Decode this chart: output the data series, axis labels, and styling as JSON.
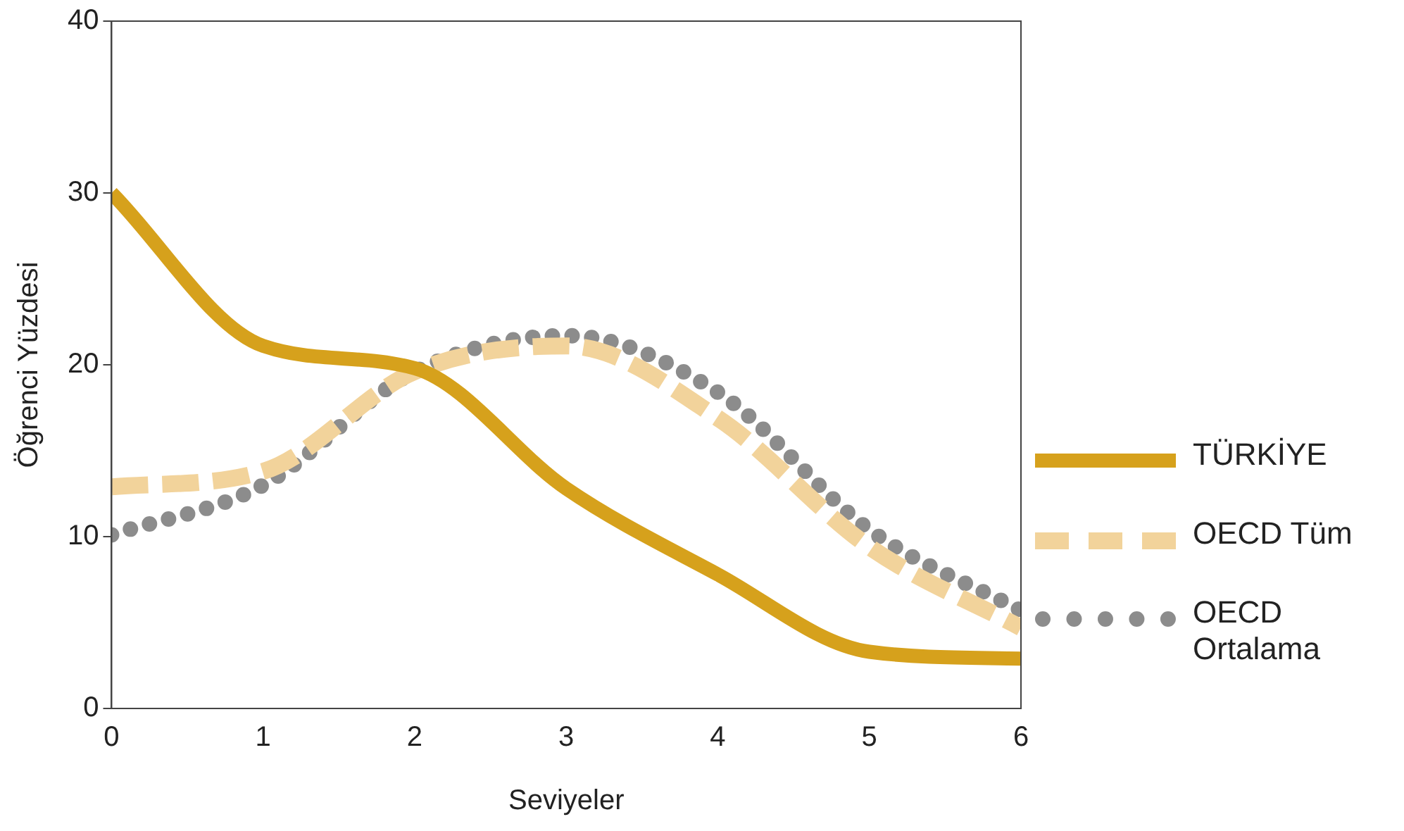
{
  "chart_data": {
    "type": "line",
    "xlabel": "Seviyeler",
    "ylabel": "Öğrenci Yüzdesi",
    "x": [
      0,
      1,
      2,
      3,
      4,
      5,
      6
    ],
    "series": [
      {
        "name": "TÜRKİYE",
        "color": "#d6a11c",
        "values": [
          30,
          21.1,
          19.8,
          12.8,
          7.8,
          3.3,
          2.9
        ],
        "line_style": "solid"
      },
      {
        "name": "OECD Tüm",
        "color": "#f2d39b",
        "values": [
          12.9,
          13.8,
          19.6,
          21.1,
          16.9,
          9.4,
          4.7
        ],
        "line_style": "dashed"
      },
      {
        "name": "OECD Ortalama",
        "color": "#8c8c8c",
        "values": [
          10.1,
          13,
          19.6,
          21.7,
          18.4,
          10.4,
          5.7
        ],
        "line_style": "dotted"
      }
    ],
    "xlim": [
      0,
      6
    ],
    "xticks": [
      0,
      1,
      2,
      3,
      4,
      5,
      6
    ],
    "ylim": [
      0,
      40
    ],
    "yticks": [
      0,
      10,
      20,
      30,
      40
    ],
    "grid": false,
    "legend": "right",
    "marker": "none"
  }
}
